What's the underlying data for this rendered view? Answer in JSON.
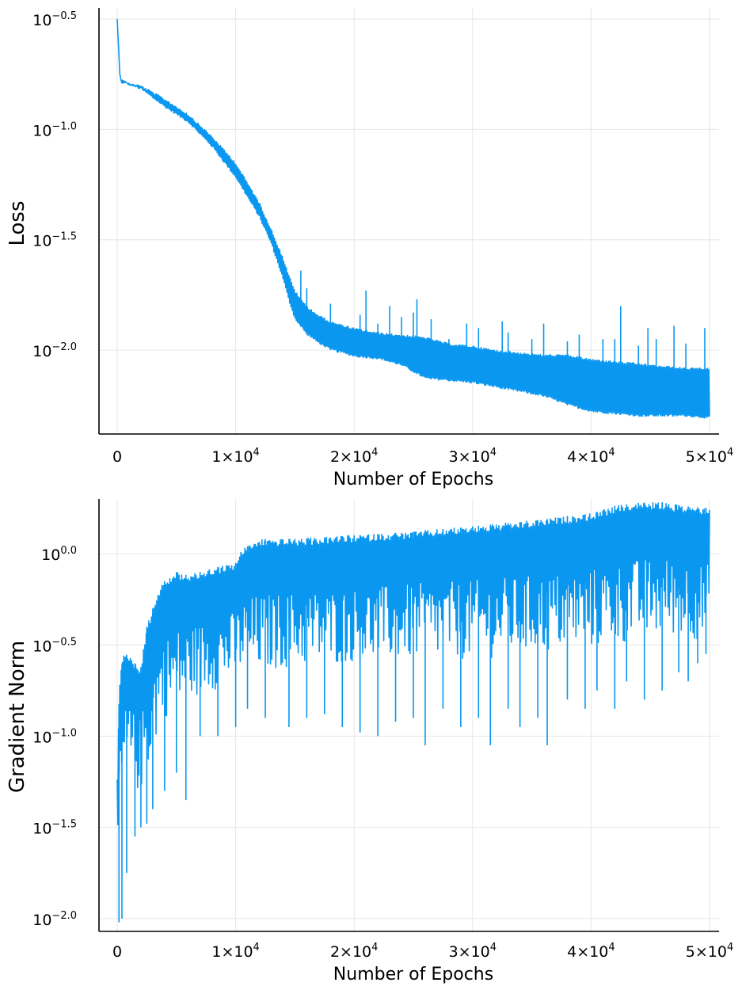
{
  "chart_data": [
    {
      "type": "line",
      "title": "",
      "xlabel": "Number of Epochs",
      "ylabel": "Loss",
      "yscale": "log10",
      "xlim": [
        -1500,
        50000
      ],
      "ylim_log10": [
        -2.38,
        -0.45
      ],
      "grid": true,
      "legend": "none",
      "x_ticks": [
        {
          "v": 0,
          "base": "0",
          "exp": ""
        },
        {
          "v": 10000,
          "base": "1×10",
          "exp": "4"
        },
        {
          "v": 20000,
          "base": "2×10",
          "exp": "4"
        },
        {
          "v": 30000,
          "base": "3×10",
          "exp": "4"
        },
        {
          "v": 40000,
          "base": "4×10",
          "exp": "4"
        },
        {
          "v": 50000,
          "base": "5×10",
          "exp": "4"
        }
      ],
      "y_ticks": [
        {
          "v": -0.5,
          "base": "10",
          "exp": "−0.5"
        },
        {
          "v": -1.0,
          "base": "10",
          "exp": "−1.0"
        },
        {
          "v": -1.5,
          "base": "10",
          "exp": "−1.5"
        },
        {
          "v": -2.0,
          "base": "10",
          "exp": "−2.0"
        }
      ],
      "series": [
        {
          "name": "loss",
          "color": "#0a97f0",
          "x": [
            0,
            300,
            1000,
            2000,
            4000,
            6000,
            8000,
            10000,
            12000,
            13000,
            14000,
            14500,
            15000,
            16000,
            17000,
            18000,
            20000,
            22000,
            24000,
            26000,
            28000,
            30000,
            32000,
            34000,
            36000,
            38000,
            40000,
            42000,
            44000,
            46000,
            48000,
            50000
          ],
          "lower_log10": [
            -0.5,
            -0.78,
            -0.8,
            -0.82,
            -0.9,
            -0.97,
            -1.08,
            -1.22,
            -1.4,
            -1.52,
            -1.68,
            -1.78,
            -1.86,
            -1.93,
            -1.97,
            -2.0,
            -2.03,
            -2.04,
            -2.07,
            -2.13,
            -2.14,
            -2.15,
            -2.17,
            -2.19,
            -2.21,
            -2.25,
            -2.28,
            -2.29,
            -2.3,
            -2.3,
            -2.3,
            -2.31
          ],
          "upper_log10": [
            -0.5,
            -0.78,
            -0.79,
            -0.8,
            -0.86,
            -0.93,
            -1.03,
            -1.15,
            -1.33,
            -1.45,
            -1.58,
            -1.66,
            -1.73,
            -1.8,
            -1.84,
            -1.87,
            -1.9,
            -1.92,
            -1.93,
            -1.94,
            -1.97,
            -1.98,
            -2.0,
            -2.01,
            -2.02,
            -2.02,
            -2.04,
            -2.05,
            -2.06,
            -2.07,
            -2.08,
            -2.08
          ],
          "spikes": [
            [
              15500,
              -1.64
            ],
            [
              16000,
              -1.72
            ],
            [
              18000,
              -1.79
            ],
            [
              20500,
              -1.84
            ],
            [
              21000,
              -1.73
            ],
            [
              22000,
              -1.88
            ],
            [
              23000,
              -1.8
            ],
            [
              24000,
              -1.85
            ],
            [
              25000,
              -1.83
            ],
            [
              25300,
              -1.77
            ],
            [
              26500,
              -1.86
            ],
            [
              28000,
              -1.95
            ],
            [
              29500,
              -1.88
            ],
            [
              30500,
              -1.9
            ],
            [
              32500,
              -1.87
            ],
            [
              33000,
              -1.92
            ],
            [
              35000,
              -1.95
            ],
            [
              36000,
              -1.88
            ],
            [
              38000,
              -1.96
            ],
            [
              39000,
              -1.93
            ],
            [
              41000,
              -1.95
            ],
            [
              42000,
              -1.95
            ],
            [
              42500,
              -1.8
            ],
            [
              44000,
              -1.98
            ],
            [
              44800,
              -1.9
            ],
            [
              45500,
              -1.95
            ],
            [
              47000,
              -1.89
            ],
            [
              48000,
              -1.97
            ],
            [
              49600,
              -1.9
            ]
          ]
        }
      ]
    },
    {
      "type": "line",
      "title": "",
      "xlabel": "Number of Epochs",
      "ylabel": "Gradient Norm",
      "yscale": "log10",
      "xlim": [
        -1500,
        50000
      ],
      "ylim_log10": [
        -2.07,
        0.3
      ],
      "grid": true,
      "legend": "none",
      "x_ticks": [
        {
          "v": 0,
          "base": "0",
          "exp": ""
        },
        {
          "v": 10000,
          "base": "1×10",
          "exp": "4"
        },
        {
          "v": 20000,
          "base": "2×10",
          "exp": "4"
        },
        {
          "v": 30000,
          "base": "3×10",
          "exp": "4"
        },
        {
          "v": 40000,
          "base": "4×10",
          "exp": "4"
        },
        {
          "v": 50000,
          "base": "5×10",
          "exp": "4"
        }
      ],
      "y_ticks": [
        {
          "v": 0.0,
          "base": "10",
          "exp": "0.0"
        },
        {
          "v": -0.5,
          "base": "10",
          "exp": "−0.5"
        },
        {
          "v": -1.0,
          "base": "10",
          "exp": "−1.0"
        },
        {
          "v": -1.5,
          "base": "10",
          "exp": "−1.5"
        },
        {
          "v": -2.0,
          "base": "10",
          "exp": "−2.0"
        }
      ],
      "series": [
        {
          "name": "gradient norm",
          "color": "#0a97f0",
          "x": [
            0,
            200,
            500,
            1000,
            1500,
            2000,
            2500,
            3000,
            3500,
            4000,
            5000,
            6000,
            8000,
            10000,
            10500,
            12000,
            15000,
            20000,
            25000,
            30000,
            35000,
            40000,
            42000,
            44000,
            46000,
            48000,
            50000
          ],
          "upper_log10": [
            -1.2,
            -0.7,
            -0.56,
            -0.55,
            -0.6,
            -0.62,
            -0.4,
            -0.3,
            -0.2,
            -0.15,
            -0.1,
            -0.12,
            -0.08,
            -0.05,
            0.02,
            0.08,
            0.08,
            0.1,
            0.12,
            0.15,
            0.18,
            0.22,
            0.26,
            0.28,
            0.28,
            0.26,
            0.25
          ],
          "base_log10": [
            -1.8,
            -1.5,
            -1.3,
            -1.2,
            -1.3,
            -1.3,
            -1.2,
            -1.1,
            -0.95,
            -0.9,
            -0.85,
            -0.8,
            -0.75,
            -0.7,
            -0.65,
            -0.65,
            -0.62,
            -0.6,
            -0.58,
            -0.58,
            -0.55,
            -0.52,
            -0.5,
            -0.48,
            -0.45,
            -0.45,
            -0.5
          ],
          "dips": [
            [
              150,
              -2.02
            ],
            [
              400,
              -2.0
            ],
            [
              800,
              -1.75
            ],
            [
              1500,
              -1.55
            ],
            [
              2000,
              -1.5
            ],
            [
              2500,
              -1.48
            ],
            [
              3000,
              -1.4
            ],
            [
              4000,
              -1.3
            ],
            [
              5000,
              -1.2
            ],
            [
              5800,
              -1.35
            ],
            [
              7000,
              -1.0
            ],
            [
              8500,
              -1.0
            ],
            [
              10000,
              -0.95
            ],
            [
              11000,
              -0.85
            ],
            [
              12500,
              -0.9
            ],
            [
              14500,
              -0.95
            ],
            [
              16000,
              -0.9
            ],
            [
              17500,
              -0.88
            ],
            [
              19000,
              -0.95
            ],
            [
              20500,
              -0.98
            ],
            [
              22000,
              -1.0
            ],
            [
              23500,
              -0.92
            ],
            [
              25000,
              -0.9
            ],
            [
              26000,
              -1.05
            ],
            [
              27500,
              -0.85
            ],
            [
              29000,
              -0.95
            ],
            [
              30500,
              -0.9
            ],
            [
              31500,
              -1.05
            ],
            [
              33000,
              -0.85
            ],
            [
              34000,
              -0.95
            ],
            [
              35500,
              -0.9
            ],
            [
              36300,
              -1.05
            ],
            [
              38000,
              -0.8
            ],
            [
              39500,
              -0.85
            ],
            [
              40500,
              -0.75
            ],
            [
              42000,
              -0.85
            ],
            [
              43000,
              -0.7
            ],
            [
              44500,
              -0.8
            ],
            [
              46000,
              -0.75
            ],
            [
              47400,
              -0.65
            ],
            [
              48200,
              -0.7
            ],
            [
              49000,
              -0.6
            ],
            [
              49700,
              -0.55
            ]
          ]
        }
      ]
    }
  ]
}
